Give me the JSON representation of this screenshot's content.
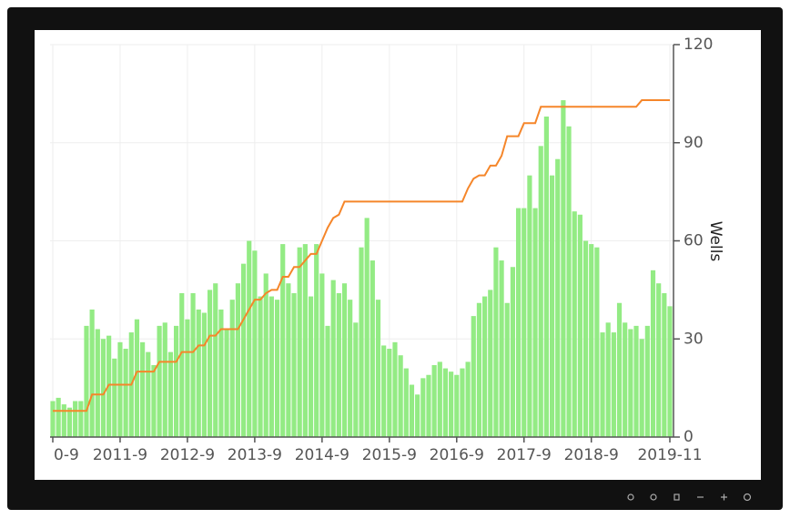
{
  "chart_data": {
    "type": "bar",
    "ylabel": "Wells",
    "categories": [
      "0-9",
      null,
      null,
      null,
      null,
      null,
      null,
      null,
      null,
      null,
      null,
      null,
      "2011-9",
      null,
      null,
      null,
      null,
      null,
      null,
      null,
      null,
      null,
      null,
      null,
      "2012-9",
      null,
      null,
      null,
      null,
      null,
      null,
      null,
      null,
      null,
      null,
      null,
      "2013-9",
      null,
      null,
      null,
      null,
      null,
      null,
      null,
      null,
      null,
      null,
      null,
      "2014-9",
      null,
      null,
      null,
      null,
      null,
      null,
      null,
      null,
      null,
      null,
      null,
      "2015-9",
      null,
      null,
      null,
      null,
      null,
      null,
      null,
      null,
      null,
      null,
      null,
      "2016-9",
      null,
      null,
      null,
      null,
      null,
      null,
      null,
      null,
      null,
      null,
      null,
      "2017-9",
      null,
      null,
      null,
      null,
      null,
      null,
      null,
      null,
      null,
      null,
      null,
      "2018-9",
      null,
      null,
      null,
      null,
      null,
      null,
      null,
      null,
      null,
      null,
      null,
      null,
      null,
      "2019-11"
    ],
    "series": [
      {
        "type": "bar",
        "color": "#93eb84",
        "values": [
          11,
          12,
          10,
          9,
          11,
          11,
          34,
          39,
          33,
          30,
          31,
          24,
          29,
          27,
          32,
          36,
          29,
          26,
          22,
          34,
          35,
          26,
          34,
          44,
          36,
          44,
          39,
          38,
          45,
          47,
          39,
          33,
          42,
          47,
          53,
          60,
          57,
          43,
          50,
          43,
          42,
          59,
          47,
          44,
          58,
          59,
          43,
          59,
          50,
          34,
          48,
          44,
          47,
          42,
          35,
          58,
          67,
          54,
          42,
          28,
          27,
          29,
          25,
          21,
          16,
          13,
          18,
          19,
          22,
          23,
          21,
          20,
          19,
          21,
          23,
          37,
          41,
          43,
          45,
          58,
          54,
          41,
          52,
          70,
          70,
          80,
          70,
          89,
          98,
          80,
          85,
          103,
          95,
          69,
          68,
          60,
          59,
          58,
          32,
          35,
          32,
          41,
          35,
          33,
          34,
          30,
          34,
          51,
          47,
          44,
          40
        ]
      },
      {
        "type": "line",
        "color": "#f5862a",
        "values": [
          8,
          8,
          8,
          8,
          8,
          8,
          8,
          13,
          13,
          13,
          16,
          16,
          16,
          16,
          16,
          20,
          20,
          20,
          20,
          23,
          23,
          23,
          23,
          26,
          26,
          26,
          28,
          28,
          31,
          31,
          33,
          33,
          33,
          33,
          36,
          39,
          42,
          42,
          44,
          45,
          45,
          49,
          49,
          52,
          52,
          54,
          56,
          56,
          60,
          64,
          67,
          68,
          72,
          72,
          72,
          72,
          72,
          72,
          72,
          72,
          72,
          72,
          72,
          72,
          72,
          72,
          72,
          72,
          72,
          72,
          72,
          72,
          72,
          72,
          76,
          79,
          80,
          80,
          83,
          83,
          86,
          92,
          92,
          92,
          96,
          96,
          96,
          101,
          101,
          101,
          101,
          101,
          101,
          101,
          101,
          101,
          101,
          101,
          101,
          101,
          101,
          101,
          101,
          101,
          101,
          103,
          103,
          103,
          103,
          103,
          103
        ]
      }
    ],
    "ylim": [
      0,
      120
    ],
    "yticks": [
      0,
      30,
      60,
      90,
      120
    ],
    "grid": true
  }
}
